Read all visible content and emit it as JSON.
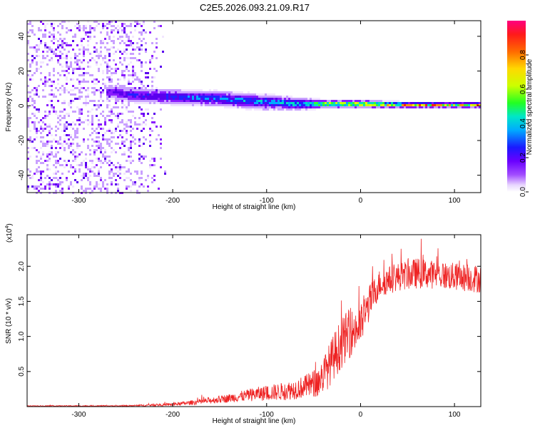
{
  "figure_title": "C2E5.2026.093.21.09.R17",
  "colors": {
    "snr_line": "#ee2222",
    "axis": "#000000",
    "background": "#ffffff",
    "colormap": [
      "#f2e6ff",
      "#c9a0ff",
      "#8a1cff",
      "#5a00ee",
      "#2222ff",
      "#00aaff",
      "#00e0c0",
      "#33ff33",
      "#c8ff00",
      "#ffee00",
      "#ff9900",
      "#ff2a00",
      "#ff0066"
    ]
  },
  "chart_data": [
    {
      "type": "heatmap",
      "title": "",
      "xlabel": "Height of straight line (km)",
      "ylabel": "Frequency (Hz)",
      "xlim": [
        -355,
        128
      ],
      "ylim": [
        -50,
        49
      ],
      "xticks": [
        -300,
        -200,
        -100,
        0,
        100
      ],
      "xtick_labels": [
        "-300",
        "-200",
        "-100",
        "0",
        "100"
      ],
      "yticks": [
        -40,
        -20,
        0,
        20,
        40
      ],
      "ytick_labels": [
        "-40",
        "-20",
        "0",
        "20",
        "40"
      ],
      "colorbar": {
        "label": "Normalized spectral amplitude",
        "range": [
          0,
          1
        ],
        "ticks": [
          0.0,
          0.2,
          0.4,
          0.6,
          0.8
        ],
        "tick_labels": [
          "0.0",
          "0.2",
          "0.4",
          "0.6",
          "0.8"
        ]
      },
      "ridge": {
        "description_points_x_km": [
          -265,
          -240,
          -200,
          -150,
          -100,
          -60,
          -35,
          0,
          50,
          128
        ],
        "center_freq_hz": [
          8,
          6,
          5,
          4,
          2,
          1,
          1,
          1,
          0.5,
          0.5
        ],
        "half_width_hz": [
          4,
          4,
          4,
          4,
          4,
          3,
          2,
          2,
          1.5,
          1.5
        ],
        "peak_amplitude": [
          0.3,
          0.35,
          0.4,
          0.45,
          0.5,
          0.6,
          0.8,
          0.9,
          0.95,
          0.95
        ]
      },
      "noise_region_x_km": [
        -355,
        -205
      ],
      "noise_amplitude": [
        0.0,
        0.25
      ]
    },
    {
      "type": "line",
      "title": "",
      "xlabel": "Height of straight line (km)",
      "ylabel": "SNR (10 * v/v)",
      "y_multiplier_label": "(x10",
      "y_multiplier_exp": "4",
      "y_multiplier_close": ")",
      "xlim": [
        -355,
        128
      ],
      "ylim": [
        0,
        2.45
      ],
      "xticks": [
        -300,
        -200,
        -100,
        0,
        100
      ],
      "xtick_labels": [
        "-300",
        "-200",
        "-100",
        "0",
        "100"
      ],
      "yticks": [
        0.5,
        1.0,
        1.5,
        2.0
      ],
      "ytick_labels": [
        "0.5",
        "1.0",
        "1.5",
        "2.0"
      ],
      "series": [
        {
          "name": "SNR",
          "envelope_x_km": [
            -355,
            -250,
            -200,
            -170,
            -140,
            -110,
            -80,
            -60,
            -45,
            -35,
            -25,
            -15,
            0,
            10,
            20,
            40,
            60,
            80,
            100,
            128
          ],
          "envelope_mean_x1e4": [
            0.01,
            0.01,
            0.03,
            0.07,
            0.12,
            0.18,
            0.22,
            0.28,
            0.35,
            0.55,
            0.8,
            1.0,
            1.15,
            1.5,
            1.75,
            1.85,
            1.9,
            1.88,
            1.85,
            1.82
          ],
          "envelope_noise_x1e4": [
            0.005,
            0.008,
            0.02,
            0.04,
            0.06,
            0.1,
            0.13,
            0.16,
            0.22,
            0.3,
            0.35,
            0.35,
            0.3,
            0.25,
            0.2,
            0.2,
            0.22,
            0.2,
            0.2,
            0.2
          ]
        }
      ]
    }
  ]
}
